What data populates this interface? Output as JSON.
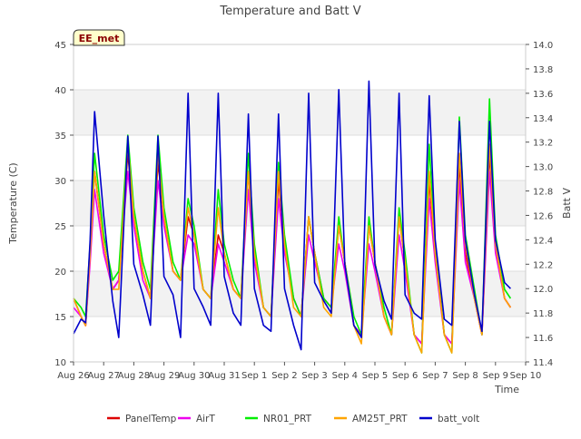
{
  "title": "Temperature and Batt V",
  "site_badge": "EE_met",
  "chart_data": {
    "type": "line",
    "title": "Temperature and Batt V",
    "xlabel": "Time",
    "ylabel": "Temperature (C)",
    "y2label": "Batt V",
    "xlim": [
      0,
      15
    ],
    "ylim": [
      10,
      45
    ],
    "y2lim": [
      11.4,
      14.0
    ],
    "x_ticks": [
      0,
      1,
      2,
      3,
      4,
      5,
      6,
      7,
      8,
      9,
      10,
      11,
      12,
      13,
      14,
      15
    ],
    "x_tick_labels": [
      "Aug 26",
      "Aug 27",
      "Aug 28",
      "Aug 29",
      "Aug 30",
      "Aug 31",
      "Sep 1",
      "Sep 2",
      "Sep 3",
      "Sep 4",
      "Sep 5",
      "Sep 6",
      "Sep 7",
      "Sep 8",
      "Sep 9",
      "Sep 10"
    ],
    "y_ticks": [
      10,
      15,
      20,
      25,
      30,
      35,
      40,
      45
    ],
    "y2_ticks": [
      11.4,
      11.6,
      11.8,
      12.0,
      12.2,
      12.4,
      12.6,
      12.8,
      13.0,
      13.2,
      13.4,
      13.6,
      13.8,
      14.0
    ],
    "y2_tick_labels": [
      "11.4",
      "11.6",
      "11.8",
      "12.0",
      "12.2",
      "12.4",
      "12.6",
      "12.8",
      "13.0",
      "13.2",
      "13.4",
      "13.6",
      "13.8",
      "14.0"
    ],
    "bands": [
      [
        15,
        20
      ],
      [
        25,
        30
      ],
      [
        35,
        40
      ]
    ],
    "legend_position": "bottom",
    "x": [
      0.0,
      0.25,
      0.4,
      0.55,
      0.7,
      1.0,
      1.3,
      1.5,
      1.8,
      2.0,
      2.3,
      2.55,
      2.8,
      3.0,
      3.3,
      3.55,
      3.8,
      4.0,
      4.3,
      4.55,
      4.8,
      5.0,
      5.3,
      5.55,
      5.8,
      6.0,
      6.3,
      6.55,
      6.8,
      7.0,
      7.3,
      7.55,
      7.8,
      8.0,
      8.3,
      8.55,
      8.8,
      9.0,
      9.3,
      9.55,
      9.8,
      10.0,
      10.3,
      10.55,
      10.8,
      11.0,
      11.3,
      11.55,
      11.8,
      12.0,
      12.3,
      12.55,
      12.8,
      13.0,
      13.3,
      13.55,
      13.8,
      14.0,
      14.3,
      14.5
    ],
    "series": [
      {
        "name": "PanelTemp",
        "color": "#dd0000",
        "axis": "left",
        "values": [
          17,
          15,
          14,
          22,
          31,
          23,
          18,
          19,
          33,
          26,
          20,
          17,
          32,
          26,
          20,
          19,
          26,
          24,
          18,
          17,
          24,
          22,
          18,
          17,
          31,
          22,
          16,
          15,
          30,
          23,
          17,
          15,
          26,
          22,
          17,
          16,
          25,
          21,
          14,
          13,
          25,
          21,
          15,
          13,
          26,
          21,
          13,
          12,
          30,
          22,
          13,
          12,
          32,
          22,
          17,
          13,
          33,
          23,
          17,
          16
        ]
      },
      {
        "name": "AirT",
        "color": "#ee00ee",
        "axis": "left",
        "values": [
          16,
          15,
          14,
          21,
          29,
          22,
          18,
          19,
          31,
          25,
          19,
          17,
          30,
          25,
          20,
          19,
          24,
          23,
          18,
          17,
          23,
          21,
          18,
          17,
          29,
          21,
          16,
          15,
          28,
          22,
          17,
          15,
          24,
          21,
          17,
          16,
          23,
          20,
          14,
          13,
          23,
          20,
          15,
          13,
          24,
          20,
          13,
          12,
          28,
          21,
          13,
          12,
          30,
          21,
          17,
          13,
          31,
          22,
          17,
          16
        ]
      },
      {
        "name": "NR01_PRT",
        "color": "#00ee00",
        "axis": "left",
        "values": [
          17,
          16,
          15,
          23,
          33,
          24,
          19,
          20,
          35,
          27,
          21,
          18,
          35,
          27,
          21,
          19,
          28,
          25,
          18,
          17,
          29,
          23,
          19,
          17,
          33,
          23,
          16,
          15,
          32,
          24,
          17,
          15,
          26,
          22,
          17,
          16,
          26,
          21,
          15,
          13,
          26,
          21,
          16,
          13,
          27,
          22,
          13,
          11,
          34,
          23,
          13,
          11,
          37,
          24,
          18,
          13,
          39,
          24,
          18,
          17
        ]
      },
      {
        "name": "AM25T_PRT",
        "color": "#ffa500",
        "axis": "left",
        "values": [
          17,
          15,
          14,
          22,
          31,
          23,
          18,
          18,
          34,
          26,
          20,
          17,
          33,
          26,
          20,
          19,
          27,
          24,
          18,
          17,
          27,
          22,
          18,
          17,
          31,
          22,
          16,
          15,
          31,
          23,
          16,
          15,
          26,
          22,
          16,
          15,
          25,
          21,
          14,
          12,
          25,
          21,
          15,
          13,
          26,
          21,
          13,
          11,
          31,
          22,
          13,
          11,
          33,
          23,
          17,
          13,
          34,
          23,
          17,
          16
        ]
      },
      {
        "name": "batt_volt",
        "color": "#0000cc",
        "axis": "right",
        "values": [
          11.63,
          11.75,
          11.72,
          12.4,
          13.45,
          12.6,
          11.9,
          11.6,
          13.25,
          12.2,
          11.95,
          11.7,
          13.25,
          12.1,
          11.95,
          11.6,
          13.6,
          12.0,
          11.85,
          11.7,
          13.6,
          12.1,
          11.8,
          11.7,
          13.43,
          12.0,
          11.7,
          11.65,
          13.43,
          12.0,
          11.7,
          11.5,
          13.6,
          12.05,
          11.9,
          11.8,
          13.63,
          12.2,
          11.7,
          11.6,
          13.7,
          12.2,
          11.9,
          11.75,
          13.6,
          11.95,
          11.8,
          11.75,
          13.58,
          12.4,
          11.75,
          11.7,
          13.37,
          12.4,
          11.95,
          11.65,
          13.37,
          12.4,
          12.05,
          12.0
        ]
      }
    ]
  }
}
